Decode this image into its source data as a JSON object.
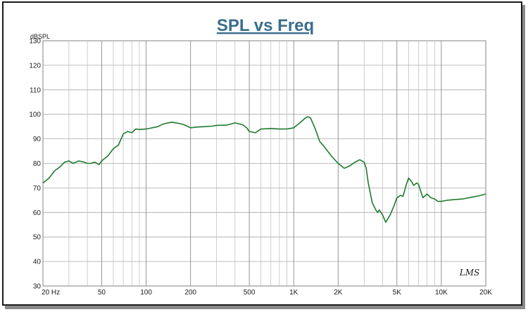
{
  "chart_data": {
    "type": "line",
    "title": "SPL vs Freq",
    "y_unit_label": "dBSPL",
    "xscale": "log",
    "xlim": [
      20,
      20000
    ],
    "ylim": [
      30,
      130
    ],
    "grid": true,
    "x_tick_labels": [
      {
        "value": 20,
        "label": "20  Hz"
      },
      {
        "value": 50,
        "label": "50"
      },
      {
        "value": 100,
        "label": "100"
      },
      {
        "value": 200,
        "label": "200"
      },
      {
        "value": 500,
        "label": "500"
      },
      {
        "value": 1000,
        "label": "1K"
      },
      {
        "value": 2000,
        "label": "2K"
      },
      {
        "value": 5000,
        "label": "5K"
      },
      {
        "value": 10000,
        "label": "10K"
      },
      {
        "value": 20000,
        "label": "20K"
      }
    ],
    "y_tick_labels": [
      {
        "value": 130,
        "label": "130"
      },
      {
        "value": 120,
        "label": "120"
      },
      {
        "value": 110,
        "label": "110"
      },
      {
        "value": 100,
        "label": "100"
      },
      {
        "value": 90,
        "label": "90"
      },
      {
        "value": 80,
        "label": "80"
      },
      {
        "value": 70,
        "label": "70"
      },
      {
        "value": 60,
        "label": "60"
      },
      {
        "value": 50,
        "label": "50"
      },
      {
        "value": 40,
        "label": "40"
      },
      {
        "value": 30,
        "label": "30"
      }
    ],
    "series": [
      {
        "color": "#1f7a2e",
        "x": [
          20,
          22,
          24,
          26,
          28,
          30,
          32,
          35,
          38,
          40,
          42,
          45,
          48,
          50,
          55,
          60,
          65,
          70,
          75,
          80,
          85,
          90,
          100,
          110,
          120,
          130,
          140,
          150,
          160,
          170,
          180,
          200,
          220,
          250,
          280,
          300,
          350,
          400,
          420,
          450,
          480,
          500,
          550,
          600,
          700,
          800,
          900,
          1000,
          1100,
          1200,
          1250,
          1300,
          1400,
          1500,
          1600,
          1800,
          2000,
          2200,
          2400,
          2600,
          2800,
          3000,
          3100,
          3200,
          3400,
          3600,
          3700,
          3800,
          4000,
          4200,
          4500,
          4800,
          5000,
          5300,
          5500,
          5800,
          6000,
          6300,
          6500,
          6800,
          7000,
          7500,
          8000,
          8500,
          9000,
          9500,
          10000,
          11000,
          12000,
          14000,
          16000,
          18000,
          20000
        ],
        "y": [
          72,
          74,
          77,
          78.5,
          80.5,
          81,
          80,
          81,
          80.5,
          80,
          80,
          80.5,
          79.5,
          81,
          83,
          86,
          87.5,
          92,
          93,
          92.5,
          94,
          93.8,
          94,
          94.5,
          95,
          96,
          96.5,
          96.8,
          96.5,
          96.2,
          95.8,
          94.5,
          94.8,
          95,
          95.2,
          95.5,
          95.6,
          96.5,
          96.2,
          95.8,
          94.5,
          93,
          92.5,
          94,
          94.2,
          94,
          94,
          94.5,
          96.5,
          98.5,
          99,
          98.5,
          94,
          89,
          87,
          83,
          80,
          78,
          79,
          80.5,
          81.5,
          80.5,
          78,
          72,
          64,
          61,
          60,
          61,
          59,
          56,
          59,
          63,
          66,
          67,
          66.5,
          71.5,
          74,
          72.5,
          71,
          72,
          71.5,
          66,
          67.5,
          66,
          65.5,
          64.5,
          64.5,
          65,
          65.2,
          65.5,
          66.2,
          66.8,
          67.5
        ]
      }
    ]
  },
  "logo_text": "LMS"
}
